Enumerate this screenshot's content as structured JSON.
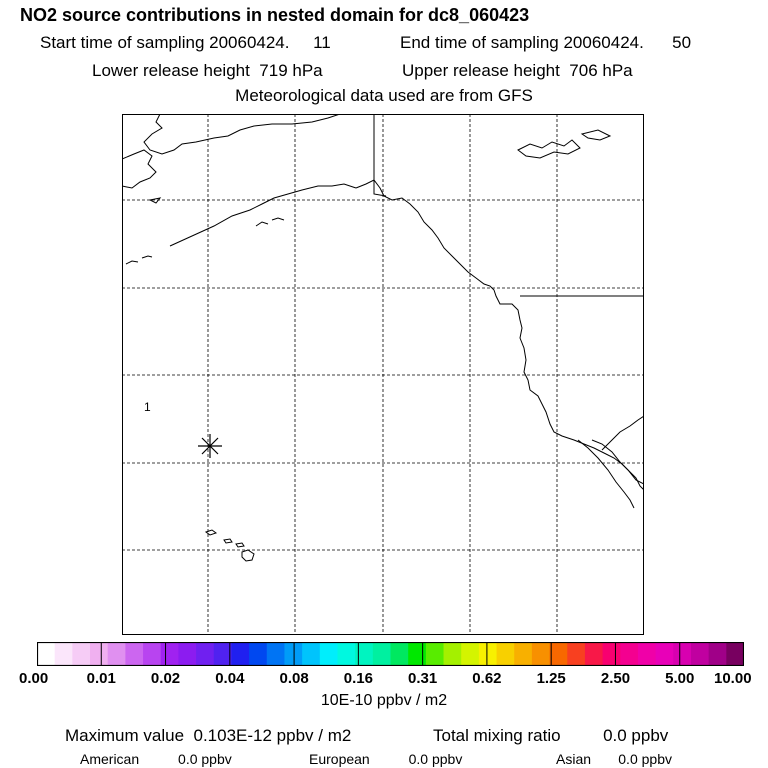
{
  "header": {
    "title": "NO2 source contributions in nested domain for dc8_060423",
    "start_label": "Start time of sampling 20060424.",
    "start_value": "11",
    "end_label": "End time of sampling 20060424.",
    "end_value": "50",
    "lower_label": "Lower release height",
    "lower_value": "719 hPa",
    "upper_label": "Upper release height",
    "upper_value": "706 hPa",
    "met_line": "Meteorological data used are from GFS"
  },
  "map": {
    "site_label": "1",
    "release_marker_icon": "asterisk-icon"
  },
  "colorbar": {
    "ticks": [
      "0.00",
      "0.01",
      "0.02",
      "0.04",
      "0.08",
      "0.16",
      "0.31",
      "0.62",
      "1.25",
      "2.50",
      "5.00",
      "10.00"
    ],
    "units": "10E-10 ppbv / m2",
    "colors": [
      "#ffffff",
      "#fbe6fb",
      "#f6ccf6",
      "#f0b0f0",
      "#e090f0",
      "#cc66f0",
      "#b844f0",
      "#a022f0",
      "#8c1cf0",
      "#7020f0",
      "#5022f0",
      "#2020f0",
      "#0048f0",
      "#0074f4",
      "#009cf8",
      "#00c4fc",
      "#00eefc",
      "#00f8e0",
      "#00f4c0",
      "#00f0a0",
      "#00e860",
      "#00e800",
      "#58ec00",
      "#a4f000",
      "#d4f400",
      "#f8f000",
      "#f8d000",
      "#f8b000",
      "#f89000",
      "#f86800",
      "#f84020",
      "#f81848",
      "#f80070",
      "#f40090",
      "#f000a8",
      "#e800b8",
      "#d800b0",
      "#c000a0",
      "#a00088",
      "#780060"
    ]
  },
  "summary": {
    "max_label": "Maximum value",
    "max_value": "0.103E-12 ppbv / m2",
    "total_label": "Total mixing ratio",
    "total_value": "0.0 ppbv",
    "regions": [
      {
        "label": "American",
        "value": "0.0 ppbv"
      },
      {
        "label": "European",
        "value": "0.0 ppbv"
      },
      {
        "label": "Asian",
        "value": "0.0 ppbv"
      }
    ]
  }
}
